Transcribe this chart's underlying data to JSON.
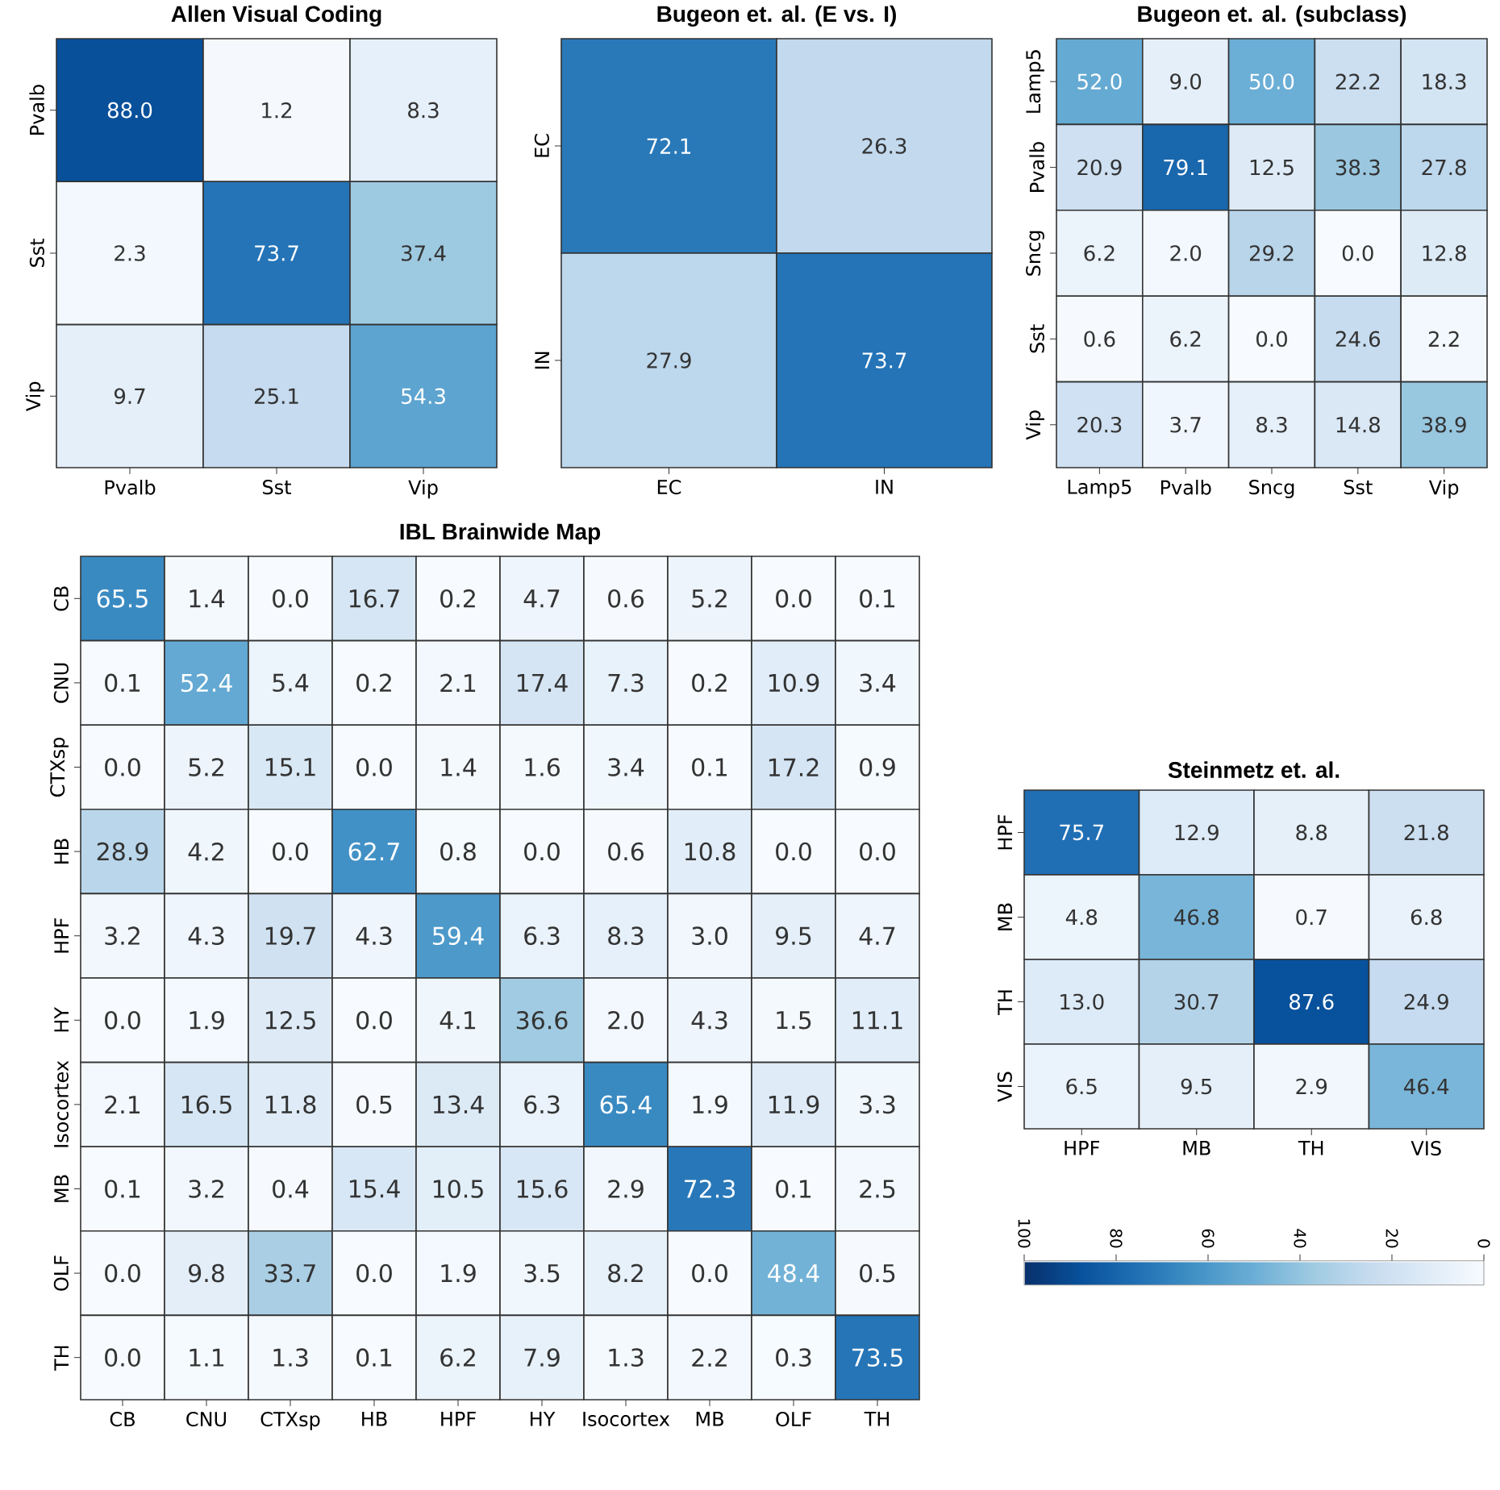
{
  "chart_data": [
    {
      "type": "heatmap",
      "title": "Allen Visual Coding",
      "categories": [
        "Pvalb",
        "Sst",
        "Vip"
      ],
      "y_categories": [
        "Pvalb",
        "Sst",
        "Vip"
      ],
      "cells": [
        [
          88.0,
          1.2,
          8.3
        ],
        [
          2.3,
          73.7,
          37.4
        ],
        [
          9.7,
          25.1,
          54.3
        ]
      ],
      "cell_labels": [
        [
          "88.0",
          "1.2",
          "8.3"
        ],
        [
          "2.3",
          "73.7",
          "37.4"
        ],
        [
          "9.7",
          "25.1",
          "54.3"
        ]
      ]
    },
    {
      "type": "heatmap",
      "title": "Bugeon et. al. (E vs. I)",
      "categories": [
        "EC",
        "IN"
      ],
      "y_categories": [
        "EC",
        "IN"
      ],
      "cells": [
        [
          72.1,
          26.3
        ],
        [
          27.9,
          73.7
        ]
      ],
      "cell_labels": [
        [
          "72.1",
          "26.3"
        ],
        [
          "27.9",
          "73.7"
        ]
      ]
    },
    {
      "type": "heatmap",
      "title": "Bugeon et. al. (subclass)",
      "categories": [
        "Lamp5",
        "Pvalb",
        "Sncg",
        "Sst",
        "Vip"
      ],
      "y_categories": [
        "Lamp5",
        "Pvalb",
        "Sncg",
        "Sst",
        "Vip"
      ],
      "cells": [
        [
          52.0,
          9.0,
          50.0,
          22.2,
          18.3
        ],
        [
          20.9,
          79.1,
          12.5,
          38.3,
          27.8
        ],
        [
          6.2,
          2.0,
          29.2,
          0.0,
          12.8
        ],
        [
          0.6,
          6.2,
          0.0,
          24.6,
          2.2
        ],
        [
          20.3,
          3.7,
          8.3,
          14.8,
          38.9
        ]
      ],
      "cell_labels": [
        [
          "52.0",
          "9.0",
          "50.0",
          "22.2",
          "18.3"
        ],
        [
          "20.9",
          "79.1",
          "12.5",
          "38.3",
          "27.8"
        ],
        [
          "6.2",
          "2.0",
          "29.2",
          "0.0",
          "12.8"
        ],
        [
          "0.6",
          "6.2",
          "0.0",
          "24.6",
          "2.2"
        ],
        [
          "20.3",
          "3.7",
          "8.3",
          "14.8",
          "38.9"
        ]
      ]
    },
    {
      "type": "heatmap",
      "title": "IBL Brainwide Map",
      "categories": [
        "CB",
        "CNU",
        "CTXsp",
        "HB",
        "HPF",
        "HY",
        "Isocortex",
        "MB",
        "OLF",
        "TH"
      ],
      "y_categories": [
        "CB",
        "CNU",
        "CTXsp",
        "HB",
        "HPF",
        "HY",
        "Isocortex",
        "MB",
        "OLF",
        "TH"
      ],
      "cells": [
        [
          65.5,
          1.4,
          0.0,
          16.7,
          0.2,
          4.7,
          0.6,
          5.2,
          0.0,
          0.1
        ],
        [
          0.1,
          52.4,
          5.4,
          0.2,
          2.1,
          17.4,
          7.3,
          0.2,
          10.9,
          3.4
        ],
        [
          0.0,
          5.2,
          15.1,
          0.0,
          1.4,
          1.6,
          3.4,
          0.1,
          17.2,
          0.9
        ],
        [
          28.9,
          4.2,
          0.0,
          62.7,
          0.8,
          0.0,
          0.6,
          10.8,
          0.0,
          0.0
        ],
        [
          3.2,
          4.3,
          19.7,
          4.3,
          59.4,
          6.3,
          8.3,
          3.0,
          9.5,
          4.7
        ],
        [
          0.0,
          1.9,
          12.5,
          0.0,
          4.1,
          36.6,
          2.0,
          4.3,
          1.5,
          11.1
        ],
        [
          2.1,
          16.5,
          11.8,
          0.5,
          13.4,
          6.3,
          65.4,
          1.9,
          11.9,
          3.3
        ],
        [
          0.1,
          3.2,
          0.4,
          15.4,
          10.5,
          15.6,
          2.9,
          72.3,
          0.1,
          2.5
        ],
        [
          0.0,
          9.8,
          33.7,
          0.0,
          1.9,
          3.5,
          8.2,
          0.0,
          48.4,
          0.5
        ],
        [
          0.0,
          1.1,
          1.3,
          0.1,
          6.2,
          7.9,
          1.3,
          2.2,
          0.3,
          73.5
        ]
      ],
      "cell_labels": [
        [
          "65.5",
          "1.4",
          "0.0",
          "16.7",
          "0.2",
          "4.7",
          "0.6",
          "5.2",
          "0.0",
          "0.1"
        ],
        [
          "0.1",
          "52.4",
          "5.4",
          "0.2",
          "2.1",
          "17.4",
          "7.3",
          "0.2",
          "10.9",
          "3.4"
        ],
        [
          "0.0",
          "5.2",
          "15.1",
          "0.0",
          "1.4",
          "1.6",
          "3.4",
          "0.1",
          "17.2",
          "0.9"
        ],
        [
          "28.9",
          "4.2",
          "0.0",
          "62.7",
          "0.8",
          "0.0",
          "0.6",
          "10.8",
          "0.0",
          "0.0"
        ],
        [
          "3.2",
          "4.3",
          "19.7",
          "4.3",
          "59.4",
          "6.3",
          "8.3",
          "3.0",
          "9.5",
          "4.7"
        ],
        [
          "0.0",
          "1.9",
          "12.5",
          "0.0",
          "4.1",
          "36.6",
          "2.0",
          "4.3",
          "1.5",
          "11.1"
        ],
        [
          "2.1",
          "16.5",
          "11.8",
          "0.5",
          "13.4",
          "6.3",
          "65.4",
          "1.9",
          "11.9",
          "3.3"
        ],
        [
          "0.1",
          "3.2",
          "0.4",
          "15.4",
          "10.5",
          "15.6",
          "2.9",
          "72.3",
          "0.1",
          "2.5"
        ],
        [
          "0.0",
          "9.8",
          "33.7",
          "0.0",
          "1.9",
          "3.5",
          "8.2",
          "0.0",
          "48.4",
          "0.5"
        ],
        [
          "0.0",
          "1.1",
          "1.3",
          "0.1",
          "6.2",
          "7.9",
          "1.3",
          "2.2",
          "0.3",
          "73.5"
        ]
      ]
    },
    {
      "type": "heatmap",
      "title": "Steinmetz et. al.",
      "categories": [
        "HPF",
        "MB",
        "TH",
        "VIS"
      ],
      "y_categories": [
        "HPF",
        "MB",
        "TH",
        "VIS"
      ],
      "cells": [
        [
          75.7,
          12.9,
          8.8,
          21.8
        ],
        [
          4.8,
          46.8,
          0.7,
          6.8
        ],
        [
          13.0,
          30.7,
          87.6,
          24.9
        ],
        [
          6.5,
          9.5,
          2.9,
          46.4
        ]
      ],
      "cell_labels": [
        [
          "75.7",
          "12.9",
          "8.8",
          "21.8"
        ],
        [
          "4.8",
          "46.8",
          "0.7",
          "6.8"
        ],
        [
          "13.0",
          "30.7",
          "87.6",
          "24.9"
        ],
        [
          "6.5",
          "9.5",
          "2.9",
          "46.4"
        ]
      ],
      "clim": [
        100,
        0
      ],
      "cticks": [
        0,
        20,
        40,
        60,
        80,
        100
      ]
    }
  ]
}
